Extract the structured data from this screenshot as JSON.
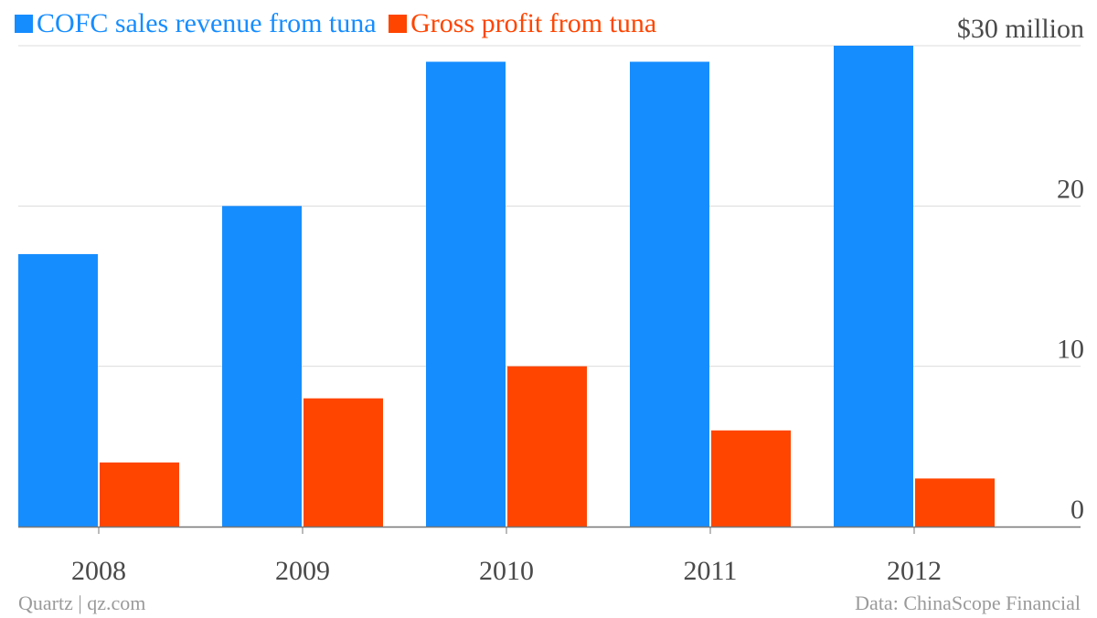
{
  "colors": {
    "revenue": "#168dff",
    "profit": "#ff4500",
    "grid": "#dcdcdc",
    "axis": "#777777",
    "tick_text": "#4a4a4a",
    "footer_text": "#9a9a9a"
  },
  "chart_data": {
    "type": "bar",
    "categories": [
      "2008",
      "2009",
      "2010",
      "2011",
      "2012"
    ],
    "series": [
      {
        "name": "COFC sales revenue from tuna",
        "values": [
          17,
          20,
          29,
          29,
          30
        ]
      },
      {
        "name": "Gross profit from tuna",
        "values": [
          4,
          8,
          10,
          6,
          3
        ]
      }
    ],
    "ylim": [
      0,
      30
    ],
    "y_ticks": [
      {
        "value": 0,
        "label": "0"
      },
      {
        "value": 10,
        "label": "10"
      },
      {
        "value": 20,
        "label": "20"
      },
      {
        "value": 30,
        "label": "$30 million"
      }
    ],
    "y_axis_side": "right",
    "grid": true,
    "legend_placement": "top-left"
  },
  "footer": {
    "source_left": "Quartz | qz.com",
    "source_right": "Data: ChinaScope Financial"
  }
}
